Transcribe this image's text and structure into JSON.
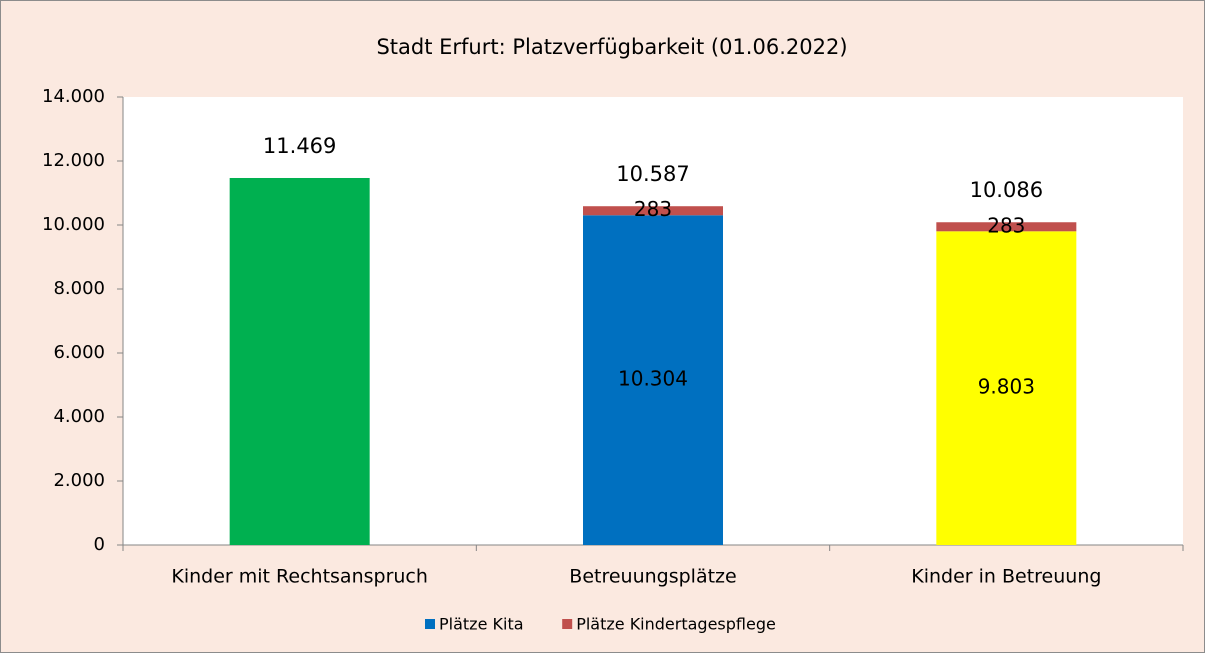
{
  "chart_data": {
    "type": "stacked-bar",
    "title": "Stadt Erfurt: Platzverfügbarkeit (01.06.2022)",
    "categories": [
      "Kinder mit Rechtsanspruch",
      "Betreuungsplätze",
      "Kinder in Betreuung"
    ],
    "series": [
      {
        "name": "Plätze Kita",
        "color": "#0070c0",
        "colors": [
          "#00b050",
          "#0070c0",
          "#ffff00"
        ],
        "values": [
          11469,
          10304,
          9803
        ],
        "value_labels": [
          null,
          "10.304",
          "9.803"
        ]
      },
      {
        "name": "Plätze Kindertagespflege",
        "color": "#c0504d",
        "values": [
          null,
          283,
          283
        ],
        "value_labels": [
          null,
          "283",
          "283"
        ]
      }
    ],
    "totals": {
      "values": [
        11469,
        10587,
        10086
      ],
      "value_labels": [
        "11.469",
        "10.587",
        "10.086"
      ]
    },
    "ylim": [
      0,
      14000
    ],
    "yticks": [
      0,
      {
        "value": 2000,
        "label": "2.000"
      },
      {
        "value": 4000,
        "label": "4.000"
      },
      {
        "value": 6000,
        "label": "6.000"
      },
      {
        "value": 8000,
        "label": "8.000"
      },
      {
        "value": 10000,
        "label": "10.000"
      },
      {
        "value": 12000,
        "label": "12.000"
      },
      {
        "value": 14000,
        "label": "14.000"
      }
    ],
    "legend": "bottom"
  }
}
